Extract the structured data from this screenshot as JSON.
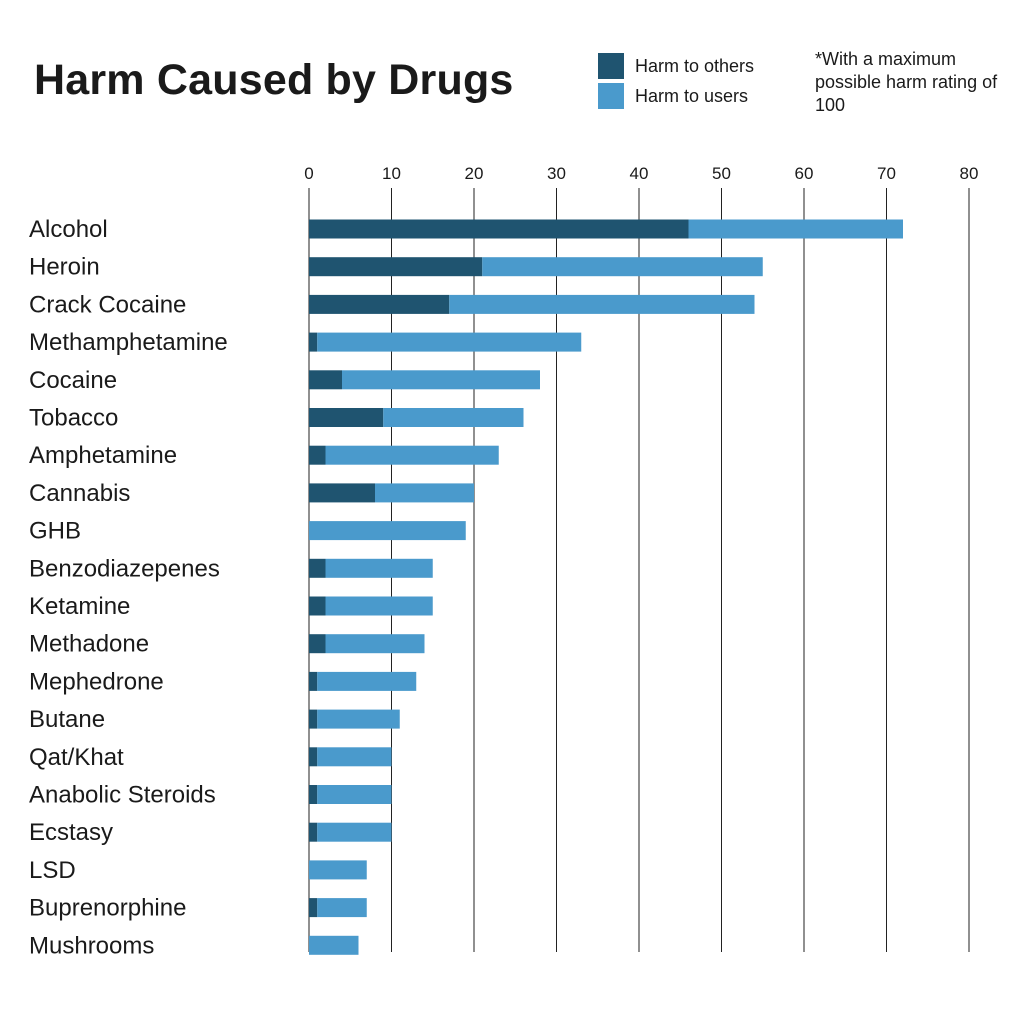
{
  "chart_data": {
    "type": "bar",
    "orientation": "horizontal",
    "stacked": true,
    "title": "Harm Caused by Drugs",
    "note": "*With a maximum possible harm rating of 100",
    "xlim": [
      0,
      80
    ],
    "xticks": [
      0,
      10,
      20,
      30,
      40,
      50,
      60,
      70,
      80
    ],
    "grid": true,
    "legend_position": "top-right",
    "colors": {
      "others": "#1f5470",
      "users": "#4a9acc"
    },
    "categories": [
      "Alcohol",
      "Heroin",
      "Crack Cocaine",
      "Methamphetamine",
      "Cocaine",
      "Tobacco",
      "Amphetamine",
      "Cannabis",
      "GHB",
      "Benzodiazepenes",
      "Ketamine",
      "Methadone",
      "Mephedrone",
      "Butane",
      "Qat/Khat",
      "Anabolic Steroids",
      "Ecstasy",
      "LSD",
      "Buprenorphine",
      "Mushrooms"
    ],
    "series": [
      {
        "name": "Harm to others",
        "key": "others",
        "values": [
          46,
          21,
          17,
          1,
          4,
          9,
          2,
          8,
          0,
          2,
          2,
          2,
          1,
          1,
          1,
          1,
          1,
          0,
          1,
          0
        ]
      },
      {
        "name": "Harm to users",
        "key": "users",
        "values": [
          26,
          34,
          37,
          32,
          24,
          17,
          21,
          12,
          19,
          13,
          13,
          12,
          12,
          10,
          9,
          9,
          9,
          7,
          6,
          6
        ]
      }
    ]
  }
}
